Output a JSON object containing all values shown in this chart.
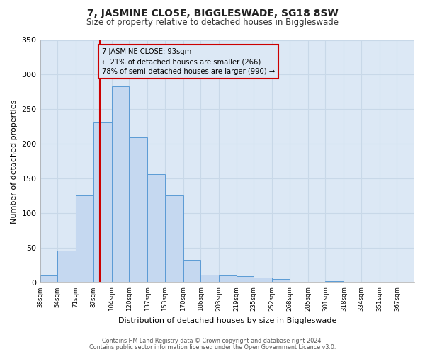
{
  "title": "7, JASMINE CLOSE, BIGGLESWADE, SG18 8SW",
  "subtitle": "Size of property relative to detached houses in Biggleswade",
  "xlabel": "Distribution of detached houses by size in Biggleswade",
  "ylabel": "Number of detached properties",
  "bin_labels": [
    "38sqm",
    "54sqm",
    "71sqm",
    "87sqm",
    "104sqm",
    "120sqm",
    "137sqm",
    "153sqm",
    "170sqm",
    "186sqm",
    "203sqm",
    "219sqm",
    "235sqm",
    "252sqm",
    "268sqm",
    "285sqm",
    "301sqm",
    "318sqm",
    "334sqm",
    "351sqm",
    "367sqm"
  ],
  "bar_values": [
    11,
    46,
    126,
    231,
    283,
    210,
    157,
    126,
    33,
    12,
    11,
    10,
    8,
    6,
    0,
    0,
    2,
    0,
    1,
    1,
    1
  ],
  "bar_color": "#c5d8f0",
  "bar_edge_color": "#5b9bd5",
  "grid_color": "#c8d8e8",
  "plot_bg_color": "#dce8f5",
  "figure_bg_color": "#ffffff",
  "vline_x": 93,
  "vline_color": "#cc0000",
  "annotation_title": "7 JASMINE CLOSE: 93sqm",
  "annotation_line1": "← 21% of detached houses are smaller (266)",
  "annotation_line2": "78% of semi-detached houses are larger (990) →",
  "annotation_box_color": "#cc0000",
  "ylim": [
    0,
    350
  ],
  "yticks": [
    0,
    50,
    100,
    150,
    200,
    250,
    300,
    350
  ],
  "bin_edges": [
    38,
    54,
    71,
    87,
    104,
    120,
    137,
    153,
    170,
    186,
    203,
    219,
    235,
    252,
    268,
    285,
    301,
    318,
    334,
    351,
    367,
    383
  ],
  "footer_line1": "Contains HM Land Registry data © Crown copyright and database right 2024.",
  "footer_line2": "Contains public sector information licensed under the Open Government Licence v3.0."
}
